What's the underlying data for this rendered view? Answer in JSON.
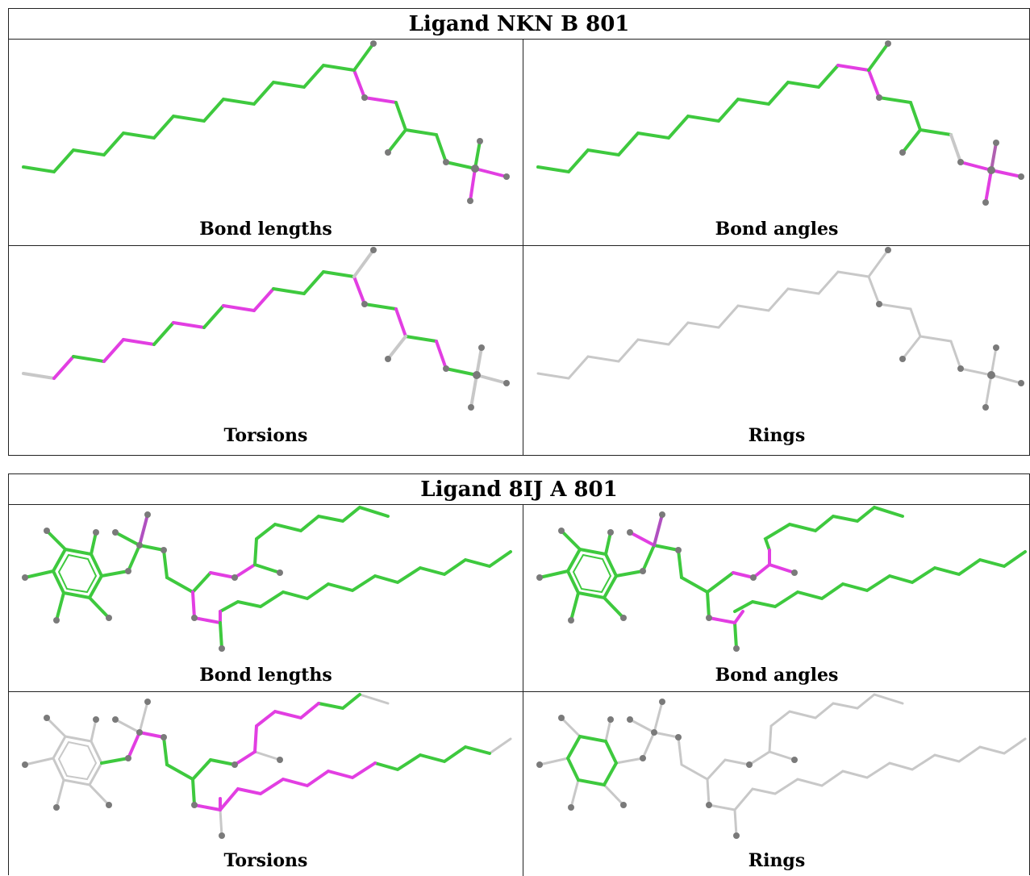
{
  "blocks": [
    {
      "title": "Ligand NKN B 801",
      "captions": [
        "Bond lengths",
        "Bond angles",
        "Torsions",
        "Rings"
      ]
    },
    {
      "title": "Ligand 8IJ A 801",
      "captions": [
        "Bond lengths",
        "Bond angles",
        "Torsions",
        "Rings"
      ]
    }
  ],
  "colors": {
    "ok": "#3ec93e",
    "outlier": "#e23ee2",
    "neutral": "#c8c8c8",
    "atom": "#7a7a7a"
  }
}
